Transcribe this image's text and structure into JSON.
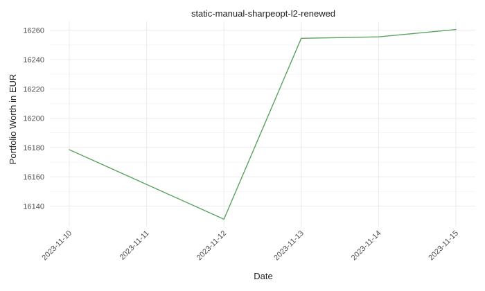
{
  "chart_data": {
    "type": "line",
    "title": "static-manual-sharpeopt-l2-renewed",
    "xlabel": "Date",
    "ylabel": "Portfolio Worth in EUR",
    "x": [
      "2023-11-10",
      "2023-11-11",
      "2023-11-12",
      "2023-11-13",
      "2023-11-14",
      "2023-11-15"
    ],
    "series": [
      {
        "x": [
          "2023-11-10",
          "2023-11-12",
          "2023-11-13",
          "2023-11-14",
          "2023-11-15"
        ],
        "values": [
          16178.5,
          16131,
          16254.5,
          16255.5,
          16260.5
        ],
        "color": "#5aa35e"
      }
    ],
    "yticks": [
      16140,
      16160,
      16180,
      16200,
      16220,
      16240,
      16260
    ],
    "ylim": [
      16126,
      16266
    ],
    "grid": true,
    "legend": "none"
  }
}
